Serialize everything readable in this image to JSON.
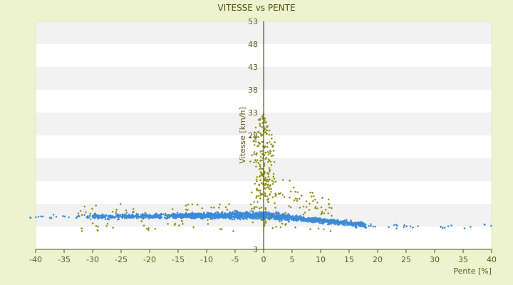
{
  "chart_data": {
    "type": "scatter",
    "title": "VITESSE vs PENTE",
    "xlabel": "Pente [%]",
    "ylabel": "Vitesse [km/h]",
    "xlim": [
      -40,
      40
    ],
    "ylim": [
      3,
      53
    ],
    "x_ticks": [
      -40,
      -35,
      -30,
      -25,
      -20,
      -15,
      -10,
      -5,
      0,
      5,
      10,
      15,
      20,
      25,
      30,
      35,
      40
    ],
    "y_ticks": [
      3,
      8,
      13,
      18,
      23,
      28,
      33,
      38,
      43,
      48,
      53
    ],
    "y_tick_labels_shown": [
      "3",
      "",
      "",
      "",
      "",
      "28",
      "33",
      "38",
      "43",
      "48",
      "53"
    ],
    "grid": "horizontal alternating bands",
    "legend": "none",
    "colors": {
      "background": "#eef3cf",
      "plot_band_light": "#ffffff",
      "plot_band_dark": "#f2f2f2",
      "series_primary": "#3a8ad8",
      "series_secondary": "#8f8f1c",
      "axis": "#4a5a10"
    },
    "series": [
      {
        "color": "#3a8ad8",
        "marker": "small-diamond",
        "description_points": [
          [
            -43,
            7.5
          ],
          [
            -38,
            11
          ],
          [
            -37,
            10
          ],
          [
            -33,
            9
          ],
          [
            -30,
            11
          ],
          [
            -25,
            10
          ],
          [
            -20,
            11
          ],
          [
            -15,
            11
          ],
          [
            -10,
            10.5
          ],
          [
            -5,
            10.5
          ],
          [
            -3,
            11
          ],
          [
            0,
            11
          ],
          [
            3,
            10
          ],
          [
            5,
            9.5
          ],
          [
            8,
            9
          ],
          [
            10,
            8.5
          ],
          [
            15,
            8.5
          ],
          [
            18,
            8.5
          ],
          [
            20,
            8
          ],
          [
            25,
            8
          ],
          [
            30,
            8
          ],
          [
            35,
            8.5
          ],
          [
            38,
            8.5
          ]
        ]
      },
      {
        "color": "#8f8f1c",
        "marker": "small-diamond",
        "description_points": [
          [
            -5,
            36
          ],
          [
            -3,
            32
          ],
          [
            -1,
            37
          ],
          [
            0,
            30
          ],
          [
            1,
            27
          ],
          [
            2,
            22
          ],
          [
            -8,
            22
          ],
          [
            -12,
            21
          ],
          [
            3,
            19
          ],
          [
            4,
            17
          ],
          [
            5,
            14
          ],
          [
            7,
            13
          ],
          [
            10,
            12
          ],
          [
            -14,
            15
          ],
          [
            -18,
            8
          ],
          [
            -25,
            8
          ],
          [
            -30,
            7.5
          ]
        ]
      }
    ]
  }
}
